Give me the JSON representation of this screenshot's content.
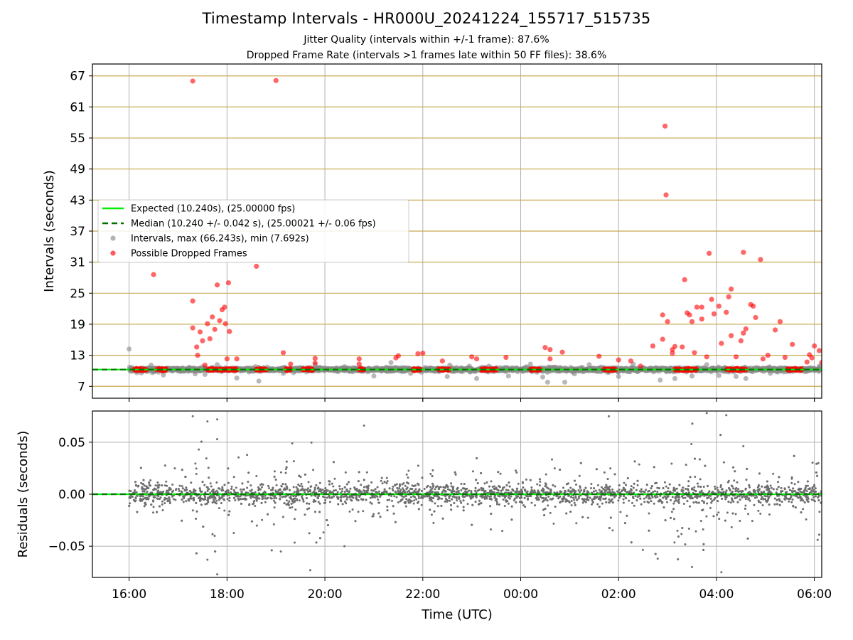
{
  "title": "Timestamp Intervals - HR000U_20241224_155717_515735",
  "subtitle_1": "Jitter Quality (intervals within +/-1 frame): 87.6%",
  "subtitle_2": "Dropped Frame Rate (intervals >1 frames late within 50 FF files): 38.6%",
  "colors": {
    "expected": "#00ee00",
    "median": "#007000",
    "interval": "#888888",
    "dropped": "#ff0000",
    "hgrid_top": "#c8a850",
    "grid": "#b0b0b0"
  },
  "chart_data": [
    {
      "type": "scatter",
      "panel": "top",
      "xlabel": "",
      "ylabel": "Intervals (seconds)",
      "x_unit": "hours since 16:00 UTC",
      "xlim": [
        -0.75,
        14.15
      ],
      "ylim": [
        4.7,
        69.3
      ],
      "yticks": [
        7,
        13,
        19,
        25,
        31,
        37,
        43,
        49,
        55,
        61,
        67
      ],
      "x_ticks": [
        0,
        2,
        4,
        6,
        8,
        10,
        12,
        14
      ],
      "x_tick_labels": [
        "16:00",
        "18:00",
        "20:00",
        "22:00",
        "00:00",
        "02:00",
        "04:00",
        "06:00"
      ],
      "grid": "horizontal at y-ticks (tan), vertical at x-ticks (gray)",
      "legend_position": "center-left",
      "series": [
        {
          "name": "Expected (10.240s), (25.00000 fps)",
          "kind": "line",
          "y": 10.24
        },
        {
          "name": "Median (10.240 +/- 0.042 s), (25.00021 +/- 0.06 fps)",
          "kind": "dashed-line",
          "y": 10.24
        },
        {
          "name": "Intervals, max (66.243s), min (7.692s)",
          "kind": "scatter",
          "points": [
            [
              0.0,
              14.2
            ],
            [
              0.25,
              9.6
            ],
            [
              0.45,
              11.1
            ],
            [
              0.7,
              9.2
            ],
            [
              0.95,
              10.5
            ],
            [
              1.35,
              9.4
            ],
            [
              1.55,
              9.3
            ],
            [
              1.8,
              11.2
            ],
            [
              2.2,
              8.6
            ],
            [
              2.65,
              8.0
            ],
            [
              2.95,
              10.2
            ],
            [
              3.15,
              9.5
            ],
            [
              3.8,
              11.2
            ],
            [
              4.4,
              10.8
            ],
            [
              5.0,
              9.0
            ],
            [
              5.35,
              11.6
            ],
            [
              5.75,
              9.5
            ],
            [
              6.05,
              10.3
            ],
            [
              6.5,
              8.9
            ],
            [
              6.55,
              11.1
            ],
            [
              6.95,
              10.9
            ],
            [
              7.1,
              8.5
            ],
            [
              7.35,
              10.9
            ],
            [
              7.75,
              9.0
            ],
            [
              8.2,
              11.3
            ],
            [
              8.45,
              8.8
            ],
            [
              8.55,
              7.8
            ],
            [
              8.7,
              10.6
            ],
            [
              8.9,
              7.8
            ],
            [
              9.1,
              9.4
            ],
            [
              9.4,
              11.2
            ],
            [
              9.8,
              9.9
            ],
            [
              10.0,
              8.9
            ],
            [
              10.3,
              11.3
            ],
            [
              10.85,
              8.2
            ],
            [
              11.15,
              8.5
            ],
            [
              11.5,
              9.0
            ],
            [
              11.8,
              11.2
            ],
            [
              12.05,
              9.1
            ],
            [
              12.4,
              8.9
            ],
            [
              12.6,
              8.5
            ],
            [
              13.1,
              9.5
            ],
            [
              13.45,
              10.3
            ],
            [
              13.9,
              10.5
            ],
            [
              14.1,
              10.9
            ]
          ]
        },
        {
          "name": "Possible Dropped Frames",
          "kind": "scatter",
          "points": [
            [
              0.5,
              28.6
            ],
            [
              1.3,
              66.0
            ],
            [
              1.3,
              23.5
            ],
            [
              1.3,
              18.3
            ],
            [
              1.38,
              14.6
            ],
            [
              1.4,
              13.0
            ],
            [
              1.45,
              17.5
            ],
            [
              1.5,
              15.8
            ],
            [
              1.55,
              11.1
            ],
            [
              1.6,
              19.1
            ],
            [
              1.65,
              16.2
            ],
            [
              1.7,
              20.4
            ],
            [
              1.75,
              18.0
            ],
            [
              1.8,
              26.6
            ],
            [
              1.85,
              19.7
            ],
            [
              1.9,
              21.8
            ],
            [
              1.95,
              22.3
            ],
            [
              1.97,
              19.1
            ],
            [
              2.03,
              27.0
            ],
            [
              2.05,
              17.6
            ],
            [
              2.0,
              12.3
            ],
            [
              2.2,
              12.3
            ],
            [
              2.6,
              30.2
            ],
            [
              3.0,
              66.1
            ],
            [
              3.15,
              13.5
            ],
            [
              3.3,
              11.3
            ],
            [
              3.8,
              12.4
            ],
            [
              3.8,
              11.5
            ],
            [
              4.7,
              12.3
            ],
            [
              4.7,
              11.3
            ],
            [
              5.45,
              12.5
            ],
            [
              5.5,
              12.9
            ],
            [
              5.9,
              13.3
            ],
            [
              6.0,
              13.4
            ],
            [
              6.4,
              11.9
            ],
            [
              7.0,
              12.7
            ],
            [
              7.1,
              12.3
            ],
            [
              7.7,
              12.6
            ],
            [
              8.5,
              14.5
            ],
            [
              8.6,
              14.1
            ],
            [
              8.6,
              12.3
            ],
            [
              8.85,
              13.6
            ],
            [
              9.6,
              12.8
            ],
            [
              10.0,
              12.1
            ],
            [
              10.25,
              11.9
            ],
            [
              10.45,
              10.9
            ],
            [
              10.7,
              14.8
            ],
            [
              10.9,
              16.1
            ],
            [
              10.95,
              57.3
            ],
            [
              10.97,
              44.0
            ],
            [
              10.9,
              20.8
            ],
            [
              11.0,
              19.5
            ],
            [
              11.1,
              13.4
            ],
            [
              11.1,
              14.1
            ],
            [
              11.15,
              14.7
            ],
            [
              11.3,
              14.6
            ],
            [
              11.35,
              27.6
            ],
            [
              11.4,
              21.2
            ],
            [
              11.45,
              20.8
            ],
            [
              11.5,
              19.5
            ],
            [
              11.55,
              13.5
            ],
            [
              11.6,
              22.3
            ],
            [
              11.7,
              22.3
            ],
            [
              11.7,
              20.0
            ],
            [
              11.8,
              12.7
            ],
            [
              11.85,
              32.7
            ],
            [
              11.9,
              23.8
            ],
            [
              11.95,
              21.0
            ],
            [
              12.05,
              22.5
            ],
            [
              12.1,
              15.3
            ],
            [
              12.2,
              21.3
            ],
            [
              12.25,
              24.3
            ],
            [
              12.3,
              25.8
            ],
            [
              12.3,
              16.8
            ],
            [
              12.4,
              12.7
            ],
            [
              12.5,
              15.8
            ],
            [
              12.55,
              17.3
            ],
            [
              12.6,
              18.1
            ],
            [
              12.55,
              32.9
            ],
            [
              12.7,
              22.8
            ],
            [
              12.75,
              22.5
            ],
            [
              12.8,
              20.3
            ],
            [
              12.9,
              31.5
            ],
            [
              12.95,
              12.3
            ],
            [
              13.05,
              13.0
            ],
            [
              13.2,
              17.9
            ],
            [
              13.3,
              19.5
            ],
            [
              13.4,
              12.6
            ],
            [
              13.55,
              15.1
            ],
            [
              13.85,
              11.7
            ],
            [
              13.9,
              13.1
            ],
            [
              13.95,
              12.5
            ],
            [
              14.0,
              14.8
            ],
            [
              14.1,
              13.9
            ],
            [
              14.15,
              11.6
            ]
          ],
          "dense_clusters_at_10_24": [
            [
              0.1,
              0.35
            ],
            [
              0.55,
              0.75
            ],
            [
              1.6,
              2.2
            ],
            [
              2.6,
              2.8
            ],
            [
              3.2,
              3.3
            ],
            [
              3.55,
              3.75
            ],
            [
              4.7,
              4.8
            ],
            [
              5.8,
              5.95
            ],
            [
              6.3,
              6.55
            ],
            [
              7.2,
              7.5
            ],
            [
              8.2,
              8.4
            ],
            [
              9.7,
              9.95
            ],
            [
              11.15,
              11.6
            ],
            [
              12.2,
              12.6
            ],
            [
              13.45,
              13.75
            ]
          ]
        }
      ]
    },
    {
      "type": "scatter",
      "panel": "bottom",
      "xlabel": "Time (UTC)",
      "ylabel": "Residuals (seconds)",
      "x_unit": "hours since 16:00 UTC",
      "xlim": [
        -0.75,
        14.15
      ],
      "ylim": [
        -0.08,
        0.08
      ],
      "yticks": [
        -0.05,
        0.0,
        0.05
      ],
      "y_tick_labels": [
        "−0.05",
        "0.00",
        "0.05"
      ],
      "x_ticks": [
        0,
        2,
        4,
        6,
        8,
        10,
        12,
        14
      ],
      "x_tick_labels": [
        "16:00",
        "18:00",
        "20:00",
        "22:00",
        "00:00",
        "02:00",
        "04:00",
        "06:00"
      ],
      "grid": "on",
      "series": [
        {
          "name": "",
          "kind": "line",
          "y": 0.0
        },
        {
          "name": "",
          "kind": "scatter",
          "description": "Residuals scattered around 0, mostly within ±0.01 s",
          "spread_by_time": [
            [
              0.0,
              0.018
            ],
            [
              1.0,
              0.02
            ],
            [
              1.5,
              0.04
            ],
            [
              2.0,
              0.03
            ],
            [
              3.5,
              0.025
            ],
            [
              4.0,
              0.035
            ],
            [
              5.0,
              0.02
            ],
            [
              6.0,
              0.02
            ],
            [
              7.0,
              0.025
            ],
            [
              8.0,
              0.02
            ],
            [
              9.0,
              0.02
            ],
            [
              9.8,
              0.03
            ],
            [
              10.5,
              0.035
            ],
            [
              11.5,
              0.04
            ],
            [
              12.0,
              0.035
            ],
            [
              12.8,
              0.03
            ],
            [
              13.5,
              0.025
            ],
            [
              14.1,
              0.025
            ]
          ],
          "outliers": [
            [
              1.3,
              0.075
            ],
            [
              1.6,
              0.07
            ],
            [
              1.8,
              0.072
            ],
            [
              1.6,
              -0.063
            ],
            [
              1.8,
              -0.077
            ],
            [
              3.7,
              -0.073
            ],
            [
              3.1,
              -0.055
            ],
            [
              4.4,
              -0.05
            ],
            [
              9.8,
              0.075
            ],
            [
              11.5,
              -0.07
            ],
            [
              11.8,
              0.078
            ],
            [
              12.2,
              0.076
            ],
            [
              12.1,
              -0.075
            ],
            [
              4.8,
              0.066
            ]
          ]
        }
      ]
    }
  ]
}
